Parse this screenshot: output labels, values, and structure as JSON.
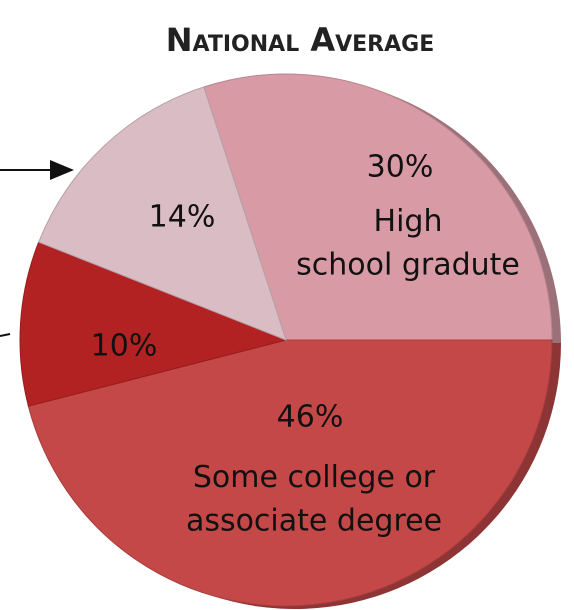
{
  "chart_data": {
    "type": "pie",
    "title": "National Average",
    "categories": [
      "High school gradute",
      "Some college or associate degree",
      null,
      null
    ],
    "values": [
      30,
      46,
      10,
      14
    ],
    "value_labels": [
      "30%",
      "46%",
      "10%",
      "14%"
    ],
    "colors": [
      "#d89ba6",
      "#c44848",
      "#b22222",
      "#d9bcc4"
    ]
  }
}
